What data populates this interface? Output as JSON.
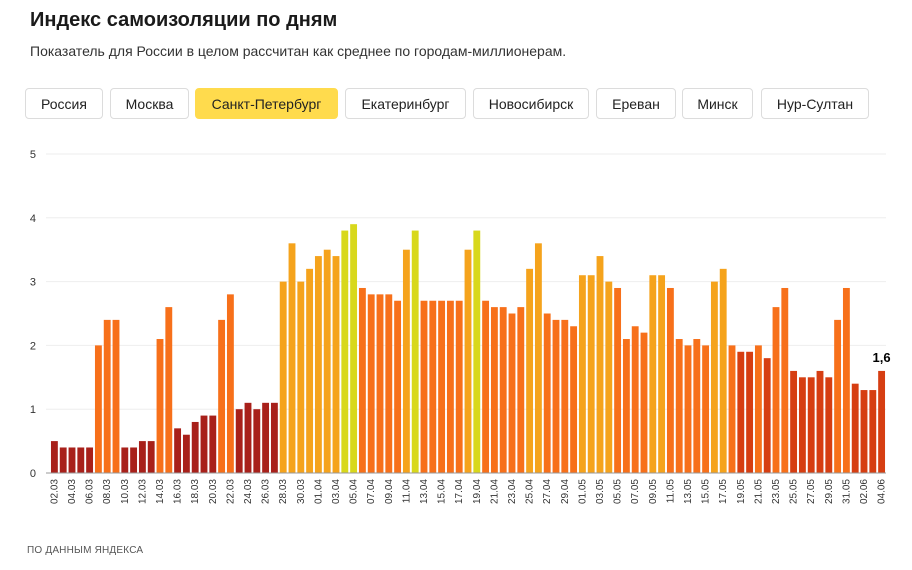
{
  "header": {
    "title": "Индекс самоизоляции по дням",
    "subtitle": "Показатель для России в целом рассчитан как среднее по городам-миллионерам."
  },
  "tabs": [
    {
      "label": "Россия",
      "active": false
    },
    {
      "label": "Москва",
      "active": false
    },
    {
      "label": "Санкт-Петербург",
      "active": true
    },
    {
      "label": "Екатеринбург",
      "active": false
    },
    {
      "label": "Новосибирск",
      "active": false
    },
    {
      "label": "Ереван",
      "active": false
    },
    {
      "label": "Минск",
      "active": false
    },
    {
      "label": "Нур-Султан",
      "active": false
    }
  ],
  "colors": {
    "active_tab": "#ffdb4d",
    "scale": [
      "#a8201a",
      "#d63e12",
      "#f7701a",
      "#f5a31c",
      "#d8d81c"
    ],
    "highlight_label": "#000000"
  },
  "chart_data": {
    "type": "bar",
    "title": "",
    "xlabel": "",
    "ylabel": "",
    "ylim": [
      0,
      5
    ],
    "yticks": [
      0,
      1,
      2,
      3,
      4,
      5
    ],
    "grid": true,
    "color_by_value": true,
    "x_tick_labels": [
      "02.03",
      "04.03",
      "06.03",
      "08.03",
      "10.03",
      "12.03",
      "14.03",
      "16.03",
      "18.03",
      "20.03",
      "22.03",
      "24.03",
      "26.03",
      "28.03",
      "30.03",
      "01.04",
      "03.04",
      "05.04",
      "07.04",
      "09.04",
      "11.04",
      "13.04",
      "15.04",
      "17.04",
      "19.04",
      "21.04",
      "23.04",
      "25.04",
      "27.04",
      "29.04",
      "01.05",
      "03.05",
      "05.05",
      "07.05",
      "09.05",
      "11.05",
      "13.05",
      "15.05",
      "17.05",
      "19.05",
      "21.05",
      "23.05",
      "25.05",
      "27.05",
      "29.05",
      "31.05",
      "02.06",
      "04.06"
    ],
    "values": [
      0.5,
      0.4,
      0.4,
      0.4,
      0.4,
      2.0,
      2.4,
      2.4,
      0.4,
      0.4,
      0.5,
      0.5,
      2.1,
      2.6,
      0.7,
      0.6,
      0.8,
      0.9,
      0.9,
      2.4,
      2.8,
      1.0,
      1.1,
      1.0,
      1.1,
      1.1,
      3.0,
      3.6,
      3.0,
      3.2,
      3.4,
      3.5,
      3.4,
      3.8,
      3.9,
      2.9,
      2.8,
      2.8,
      2.8,
      2.7,
      3.5,
      3.8,
      2.7,
      2.7,
      2.7,
      2.7,
      2.7,
      3.5,
      3.8,
      2.7,
      2.6,
      2.6,
      2.5,
      2.6,
      3.2,
      3.6,
      2.5,
      2.4,
      2.4,
      2.3,
      3.1,
      3.1,
      3.4,
      3.0,
      2.9,
      2.1,
      2.3,
      2.2,
      3.1,
      3.1,
      2.9,
      2.1,
      2.0,
      2.1,
      2.0,
      3.0,
      3.2,
      2.0,
      1.9,
      1.9,
      2.0,
      1.8,
      2.6,
      2.9,
      1.6,
      1.5,
      1.5,
      1.6,
      1.5,
      2.4,
      2.9,
      1.4,
      1.3,
      1.3,
      1.6
    ],
    "last_value_label": "1,6"
  },
  "footer": {
    "source": "ПО ДАННЫМ ЯНДЕКСА"
  }
}
